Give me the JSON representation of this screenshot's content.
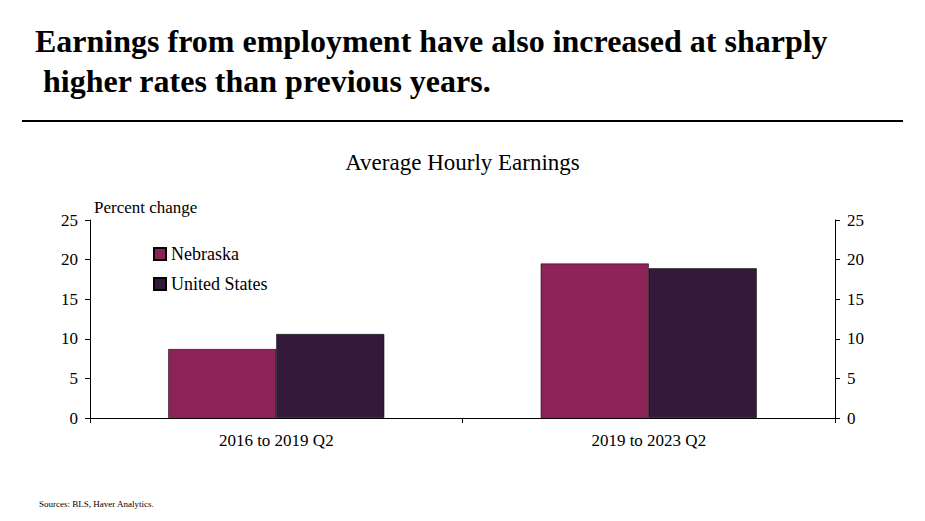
{
  "chart_data": {
    "type": "bar",
    "title": "Earnings from employment have also increased at sharply higher rates than previous years.",
    "subtitle": "Average Hourly Earnings",
    "y_label": "Percent change",
    "source": "Sources: BLS, Haver Analytics.",
    "categories": [
      "2016 to 2019 Q2",
      "2019 to 2023 Q2"
    ],
    "series": [
      {
        "name": "Nebraska",
        "color": "#8c2257",
        "values": [
          8.7,
          19.5
        ]
      },
      {
        "name": "United States",
        "color": "#331a3b",
        "values": [
          10.6,
          18.9
        ]
      }
    ],
    "ylim": [
      0,
      25
    ],
    "yticks": [
      0,
      5,
      10,
      15,
      20,
      25
    ],
    "y2lim": [
      0,
      25
    ],
    "y2ticks": [
      0,
      5,
      10,
      15,
      20,
      25
    ],
    "legend": "upper left",
    "grid": false
  }
}
